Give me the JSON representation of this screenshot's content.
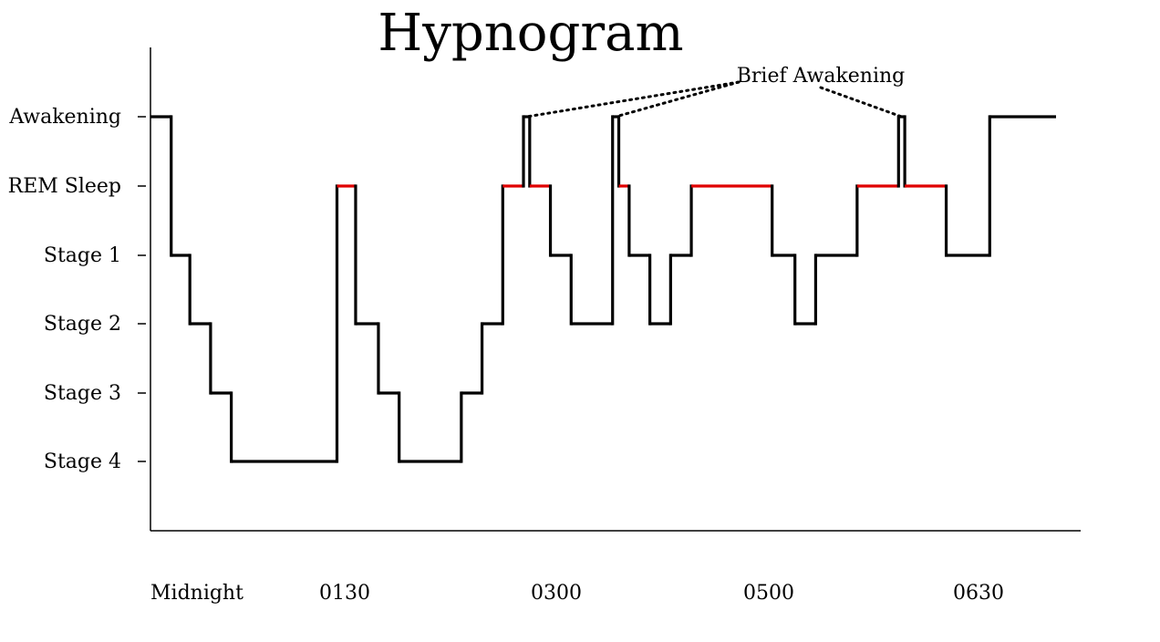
{
  "chart_data": {
    "type": "line",
    "title": "Hypnogram",
    "xlabel": "",
    "ylabel": "",
    "grid": false,
    "stages": [
      "Awakening",
      "REM Sleep",
      "Stage 1",
      "Stage 2",
      "Stage 3",
      "Stage 4"
    ],
    "stage_colors": [
      "#000000",
      "#e00000",
      "#000000",
      "#000000",
      "#000000",
      "#000000"
    ],
    "x_ticks": [
      "Midnight",
      "0130",
      "0300",
      "0500",
      "0630"
    ],
    "x_range": [
      0,
      450
    ],
    "line_color": "#000000",
    "rem_color": "#e00000",
    "segments": [
      {
        "start": 0,
        "end": 10,
        "stage": "Awakening"
      },
      {
        "start": 10,
        "end": 19,
        "stage": "Stage 1"
      },
      {
        "start": 19,
        "end": 29,
        "stage": "Stage 2"
      },
      {
        "start": 29,
        "end": 39,
        "stage": "Stage 3"
      },
      {
        "start": 39,
        "end": 90,
        "stage": "Stage 4"
      },
      {
        "start": 90,
        "end": 99,
        "stage": "REM Sleep"
      },
      {
        "start": 99,
        "end": 110,
        "stage": "Stage 2"
      },
      {
        "start": 110,
        "end": 120,
        "stage": "Stage 3"
      },
      {
        "start": 120,
        "end": 150,
        "stage": "Stage 4"
      },
      {
        "start": 150,
        "end": 160,
        "stage": "Stage 3"
      },
      {
        "start": 160,
        "end": 170,
        "stage": "Stage 2"
      },
      {
        "start": 170,
        "end": 180,
        "stage": "REM Sleep"
      },
      {
        "start": 180,
        "end": 183,
        "stage": "Awakening"
      },
      {
        "start": 183,
        "end": 193,
        "stage": "REM Sleep"
      },
      {
        "start": 193,
        "end": 203,
        "stage": "Stage 1"
      },
      {
        "start": 203,
        "end": 223,
        "stage": "Stage 2"
      },
      {
        "start": 223,
        "end": 226,
        "stage": "Awakening"
      },
      {
        "start": 226,
        "end": 231,
        "stage": "REM Sleep"
      },
      {
        "start": 231,
        "end": 241,
        "stage": "Stage 1"
      },
      {
        "start": 241,
        "end": 251,
        "stage": "Stage 2"
      },
      {
        "start": 251,
        "end": 261,
        "stage": "Stage 1"
      },
      {
        "start": 261,
        "end": 300,
        "stage": "REM Sleep"
      },
      {
        "start": 300,
        "end": 311,
        "stage": "Stage 1"
      },
      {
        "start": 311,
        "end": 321,
        "stage": "Stage 2"
      },
      {
        "start": 321,
        "end": 341,
        "stage": "Stage 1"
      },
      {
        "start": 341,
        "end": 361,
        "stage": "REM Sleep"
      },
      {
        "start": 361,
        "end": 364,
        "stage": "Awakening"
      },
      {
        "start": 364,
        "end": 384,
        "stage": "REM Sleep"
      },
      {
        "start": 384,
        "end": 405,
        "stage": "Stage 1"
      },
      {
        "start": 405,
        "end": 437,
        "stage": "Awakening"
      }
    ],
    "annotations": [
      {
        "text": "Brief Awakening",
        "targets": [
          181.5,
          224.5,
          362.5
        ]
      }
    ]
  }
}
